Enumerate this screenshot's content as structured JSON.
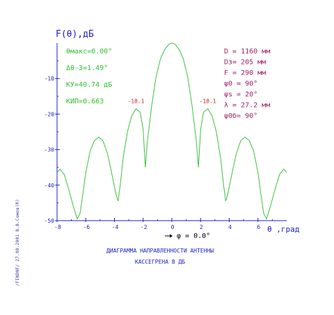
{
  "chart_data": {
    "type": "line",
    "title": "F(θ),дБ",
    "xlabel": "θ ,град",
    "ylabel": "",
    "xlim": [
      -8,
      8
    ],
    "ylim": [
      -50,
      0
    ],
    "x_ticks": [
      "-8",
      "-6",
      "-4",
      "-2",
      "0",
      "2",
      "4",
      "6"
    ],
    "y_ticks": [
      "-10",
      "-20",
      "-30",
      "-40",
      "-50"
    ],
    "grid": false,
    "series": [
      {
        "color": "#3fc03f",
        "x": [
          -8.0,
          -7.8,
          -7.5,
          -7.2,
          -6.9,
          -6.6,
          -6.4,
          -6.2,
          -6.0,
          -5.7,
          -5.4,
          -5.1,
          -4.8,
          -4.5,
          -4.2,
          -3.9,
          -3.75,
          -3.6,
          -3.4,
          -3.1,
          -2.8,
          -2.5,
          -2.2,
          -2.0,
          -1.85,
          -1.7,
          -1.4,
          -1.1,
          -0.8,
          -0.5,
          -0.2,
          0.0,
          0.2,
          0.5,
          0.8,
          1.1,
          1.4,
          1.7,
          1.85,
          2.0,
          2.2,
          2.5,
          2.8,
          3.1,
          3.4,
          3.6,
          3.75,
          3.9,
          4.2,
          4.5,
          4.8,
          5.1,
          5.4,
          5.7,
          6.0,
          6.2,
          6.4,
          6.6,
          6.9,
          7.2,
          7.5,
          7.8,
          8.0
        ],
        "y": [
          -36.5,
          -35.5,
          -37.0,
          -41.0,
          -45.5,
          -49.5,
          -48.0,
          -42.5,
          -36.5,
          -30.5,
          -27.5,
          -26.5,
          -27.5,
          -31.0,
          -36.5,
          -42.5,
          -44.5,
          -40.0,
          -32.5,
          -25.0,
          -20.5,
          -18.5,
          -19.5,
          -24.5,
          -35.0,
          -27.5,
          -17.5,
          -9.5,
          -4.5,
          -1.8,
          -0.3,
          0.0,
          -0.3,
          -1.8,
          -4.5,
          -9.5,
          -17.5,
          -27.5,
          -35.0,
          -24.5,
          -19.5,
          -18.5,
          -20.5,
          -25.0,
          -32.5,
          -40.0,
          -44.5,
          -42.5,
          -36.5,
          -31.0,
          -27.5,
          -26.5,
          -27.5,
          -30.5,
          -36.5,
          -42.5,
          -48.0,
          -49.5,
          -45.5,
          -41.0,
          -37.0,
          -35.5,
          -36.5
        ]
      }
    ],
    "annotations": [
      {
        "text": "-18.1",
        "x": -2.5,
        "y": -18.1
      },
      {
        "text": "-18.1",
        "x": 2.5,
        "y": -18.1
      }
    ],
    "params_left": [
      "θмакс=0.00°",
      "Δθ-3=1.49°",
      "KУ=40.74 дБ",
      "KИП=0.663"
    ],
    "params_right": [
      "D = 1160 мм",
      "Dз= 205 мм",
      "F = 290 мм",
      "ψ0 = 90°",
      "ψs = 20°",
      "λ = 27.2 мм",
      "ψ0б= 90°"
    ],
    "phi_label": "φ = 0.0°"
  },
  "caption": {
    "line1": "ДИАГРАММА НАПРАВЛЕННОСТИ АНТЕННЫ",
    "line2": "КАССЕГРЕНА В ДБ"
  },
  "side_note": "/FINDNF/  27.08.2001  В.В.Сомов(R)",
  "colors": {
    "axis": "#2020c8",
    "curve": "#3fc03f",
    "params_left": "#30c030",
    "params_right": "#a0206a",
    "peak_labels": "#d02020"
  }
}
